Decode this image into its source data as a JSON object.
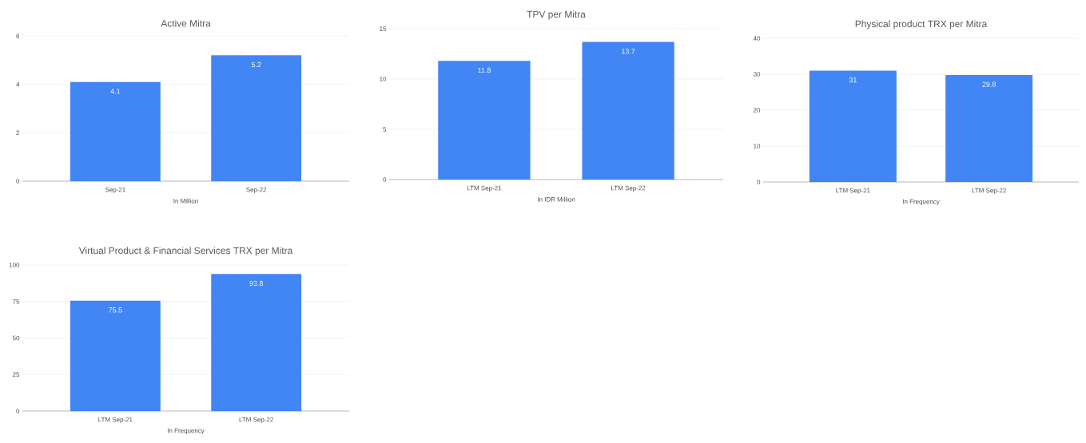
{
  "chart_data": [
    {
      "type": "bar",
      "title": "Active Mitra",
      "xlabel": "In Million",
      "categories": [
        "Sep-21",
        "Sep-22"
      ],
      "values": [
        4.1,
        5.2
      ],
      "color": "#4285f4",
      "ylim": [
        0,
        6
      ],
      "yticks": [
        0,
        2,
        4,
        6
      ],
      "grid": "y",
      "data_labels": true
    },
    {
      "type": "bar",
      "title": "TPV per Mitra",
      "xlabel": "In IDR Million",
      "categories": [
        "LTM Sep-21",
        "LTM Sep-22"
      ],
      "values": [
        11.8,
        13.7
      ],
      "color": "#4285f4",
      "ylim": [
        0,
        15
      ],
      "yticks": [
        0,
        5,
        10,
        15
      ],
      "grid": "y",
      "data_labels": true
    },
    {
      "type": "bar",
      "title": "Physical product TRX per Mitra",
      "xlabel": "In Frequency",
      "categories": [
        "LTM Sep-21",
        "LTM Sep-22"
      ],
      "values": [
        31,
        29.8
      ],
      "color": "#4285f4",
      "ylim": [
        0,
        40
      ],
      "yticks": [
        0,
        10,
        20,
        30,
        40
      ],
      "grid": "y",
      "data_labels": true
    },
    {
      "type": "bar",
      "title": "Virtual Product & Financial Services TRX per Mitra",
      "xlabel": "In Frequency",
      "categories": [
        "LTM Sep-21",
        "LTM Sep-22"
      ],
      "values": [
        75.5,
        93.8
      ],
      "color": "#4285f4",
      "ylim": [
        0,
        100
      ],
      "yticks": [
        0,
        25,
        50,
        75,
        100
      ],
      "grid": "y",
      "data_labels": true
    }
  ]
}
